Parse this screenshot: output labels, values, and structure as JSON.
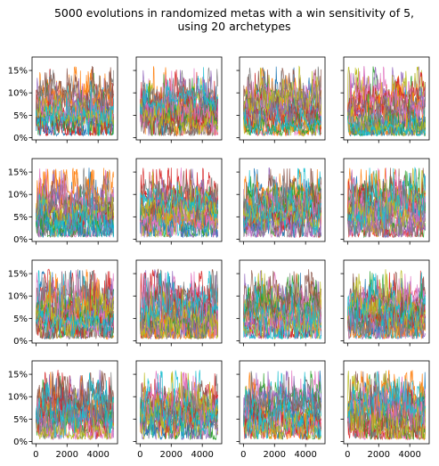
{
  "chart_data": {
    "type": "line",
    "title": "5000 evolutions in randomized metas with a win sensitivity of 5,",
    "subtitle": "using 20 archetypes",
    "grid_rows": 4,
    "grid_cols": 4,
    "sharex": true,
    "sharey": true,
    "xlim": [
      -250,
      5250
    ],
    "ylim": [
      -0.005,
      0.18
    ],
    "x_ticks": [
      0,
      2000,
      4000
    ],
    "x_tick_labels": [
      "0",
      "2000",
      "4000"
    ],
    "y_ticks": [
      0,
      0.05,
      0.1,
      0.15
    ],
    "y_tick_labels": [
      "0%",
      "5%",
      "10%",
      "15%"
    ],
    "n_series_per_panel": 20,
    "n_steps": 5000,
    "series_colors": [
      "#1f77b4",
      "#ff7f0e",
      "#2ca02c",
      "#d62728",
      "#9467bd",
      "#8c564b",
      "#e377c2",
      "#7f7f7f",
      "#bcbd22",
      "#17becf"
    ],
    "value_range_typical": [
      0.01,
      0.12
    ],
    "initial_share": 0.05,
    "grid": false
  }
}
